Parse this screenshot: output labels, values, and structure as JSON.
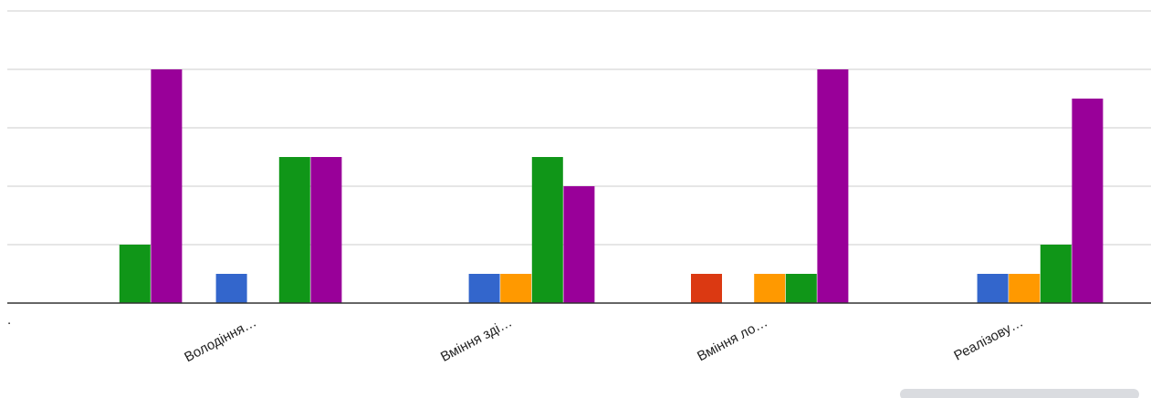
{
  "chart_data": {
    "type": "bar",
    "categories": [
      ".",
      "Володіння…",
      "Вміння зді…",
      "Вміння ло…",
      "Реалізову…"
    ],
    "series": [
      {
        "color": "#db3912",
        "values": [
          0,
          0,
          0,
          1,
          0
        ]
      },
      {
        "color": "#3366cc",
        "values": [
          0,
          1,
          1,
          0,
          1
        ]
      },
      {
        "color": "#ff9900",
        "values": [
          0,
          0,
          1,
          1,
          1
        ]
      },
      {
        "color": "#109618",
        "values": [
          2,
          5,
          5,
          1,
          2
        ]
      },
      {
        "color": "#990099",
        "values": [
          8,
          5,
          4,
          8,
          7
        ]
      }
    ],
    "title": "",
    "xlabel": "",
    "ylabel": "",
    "ylim": [
      0,
      10
    ],
    "grid": true,
    "legend": "none"
  },
  "colors": {
    "gridline": "#cccccc",
    "baseline": "#333333",
    "background": "#ffffff"
  }
}
